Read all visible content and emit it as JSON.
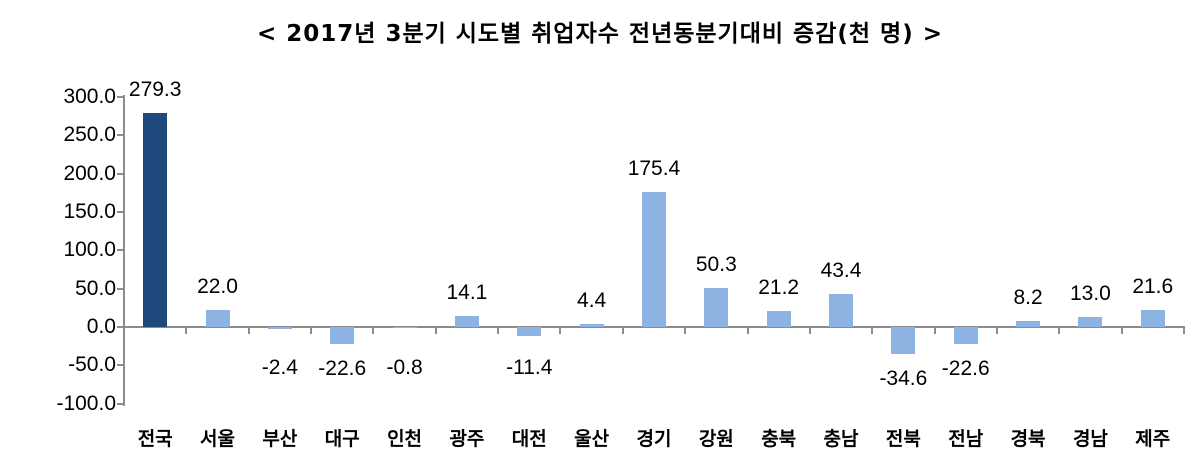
{
  "chart_data": {
    "type": "bar",
    "title": "< 2017년 3분기 시도별 취업자수 전년동분기대비 증감(천 명) >",
    "xlabel": "",
    "ylabel": "",
    "ylim": [
      -100,
      300
    ],
    "yticks": [
      "300.0",
      "250.0",
      "200.0",
      "150.0",
      "100.0",
      "50.0",
      "0.0",
      "-50.0",
      "-100.0"
    ],
    "ytick_values": [
      300,
      250,
      200,
      150,
      100,
      50,
      0,
      -50,
      -100
    ],
    "grid": false,
    "legend": null,
    "categories": [
      "전국",
      "서울",
      "부산",
      "대구",
      "인천",
      "광주",
      "대전",
      "울산",
      "경기",
      "강원",
      "충북",
      "충남",
      "전북",
      "전남",
      "경북",
      "경남",
      "제주"
    ],
    "values": [
      279.3,
      22.0,
      -2.4,
      -22.6,
      -0.8,
      14.1,
      -11.4,
      4.4,
      175.4,
      50.3,
      21.2,
      43.4,
      -34.6,
      -22.6,
      8.2,
      13.0,
      21.6
    ],
    "value_labels": [
      "279.3",
      "22.0",
      "-2.4",
      "-22.6",
      "-0.8",
      "14.1",
      "-11.4",
      "4.4",
      "175.4",
      "50.3",
      "21.2",
      "43.4",
      "-34.6",
      "-22.6",
      "8.2",
      "13.0",
      "21.6"
    ],
    "colors": {
      "total": "#1f497d",
      "region": "#8db3e2",
      "axis": "#8c8c8c"
    }
  }
}
